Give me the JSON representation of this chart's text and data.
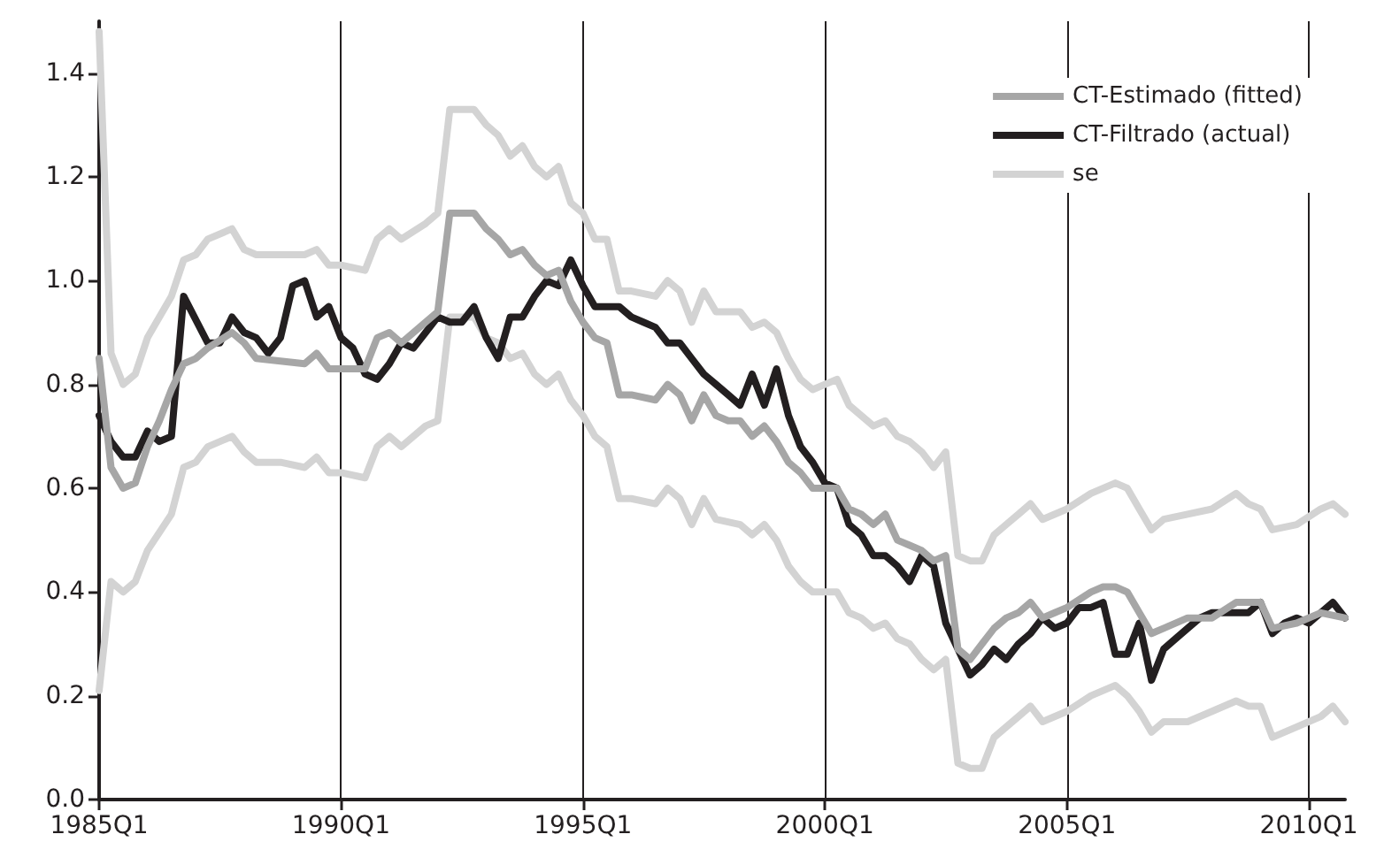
{
  "chart_data": {
    "type": "line",
    "xlim": [
      "1985-01",
      "2010-10"
    ],
    "xticks": [
      {
        "value": "1985-01",
        "label": "1985Q1"
      },
      {
        "value": "1990-01",
        "label": "1990Q1"
      },
      {
        "value": "1995-01",
        "label": "1995Q1"
      },
      {
        "value": "2000-01",
        "label": "2000Q1"
      },
      {
        "value": "2005-01",
        "label": "2005Q1"
      },
      {
        "value": "2010-01",
        "label": "2010Q1"
      }
    ],
    "ylim": [
      0,
      1.5
    ],
    "yticks": [
      {
        "value": 0,
        "label": "0.0"
      },
      {
        "value": 0.2,
        "label": "0.2"
      },
      {
        "value": 0.4,
        "label": "0.4"
      },
      {
        "value": 0.6,
        "label": "0.6"
      },
      {
        "value": 0.8,
        "label": "0.8"
      },
      {
        "value": 1,
        "label": "1.0"
      },
      {
        "value": 1.2,
        "label": "1.2"
      },
      {
        "value": 1.4,
        "label": "1.4"
      }
    ],
    "grid": "x",
    "legend": "top right",
    "marker": "none",
    "series": [
      {
        "name": "CT-Estimado (fitted)",
        "color": "#a6a6a6",
        "x": [
          "1985-01",
          "1985-04",
          "1985-07",
          "1985-10",
          "1986-01",
          "1986-04",
          "1986-07",
          "1986-10",
          "1987-01",
          "1987-04",
          "1987-10",
          "1988-01",
          "1988-04",
          "1989-04",
          "1989-07",
          "1989-10",
          "1990-01",
          "1990-07",
          "1990-10",
          "1991-01",
          "1991-04",
          "1991-10",
          "1992-01",
          "1992-04",
          "1992-10",
          "1993-01",
          "1993-04",
          "1993-07",
          "1993-10",
          "1994-01",
          "1994-04",
          "1994-07",
          "1994-10",
          "1995-01",
          "1995-04",
          "1995-07",
          "1995-10",
          "1996-01",
          "1996-07",
          "1996-10",
          "1997-01",
          "1997-04",
          "1997-07",
          "1997-10",
          "1998-01",
          "1998-04",
          "1998-07",
          "1998-10",
          "1999-01",
          "1999-04",
          "1999-07",
          "1999-10",
          "2000-01",
          "2000-04",
          "2000-07",
          "2000-10",
          "2001-01",
          "2001-04",
          "2001-07",
          "2001-10",
          "2002-01",
          "2002-04",
          "2002-07",
          "2002-10",
          "2003-01",
          "2003-04",
          "2003-07",
          "2003-10",
          "2004-01",
          "2004-04",
          "2004-07",
          "2004-10",
          "2005-01",
          "2005-07",
          "2005-10",
          "2006-01",
          "2006-04",
          "2006-07",
          "2006-10",
          "2007-01",
          "2007-07",
          "2008-01",
          "2008-07",
          "2008-10",
          "2009-01",
          "2009-04",
          "2009-10",
          "2010-04",
          "2010-10"
        ],
        "values": [
          0.85,
          0.64,
          0.6,
          0.61,
          0.68,
          0.73,
          0.79,
          0.84,
          0.85,
          0.87,
          0.9,
          0.88,
          0.85,
          0.84,
          0.86,
          0.83,
          0.83,
          0.83,
          0.89,
          0.9,
          0.88,
          0.92,
          0.94,
          1.13,
          1.13,
          1.1,
          1.08,
          1.05,
          1.06,
          1.03,
          1.01,
          1.02,
          0.96,
          0.92,
          0.89,
          0.88,
          0.78,
          0.78,
          0.77,
          0.8,
          0.78,
          0.73,
          0.78,
          0.74,
          0.73,
          0.73,
          0.7,
          0.72,
          0.69,
          0.65,
          0.63,
          0.6,
          0.6,
          0.6,
          0.56,
          0.55,
          0.53,
          0.55,
          0.5,
          0.49,
          0.48,
          0.46,
          0.47,
          0.29,
          0.27,
          0.3,
          0.33,
          0.35,
          0.36,
          0.38,
          0.35,
          0.36,
          0.37,
          0.4,
          0.41,
          0.41,
          0.4,
          0.36,
          0.32,
          0.33,
          0.35,
          0.35,
          0.38,
          0.38,
          0.38,
          0.33,
          0.34,
          0.36,
          0.35
        ]
      },
      {
        "name": "CT-Filtrado (actual)",
        "color": "#231f20",
        "x": [
          "1985-01",
          "1985-04",
          "1985-07",
          "1985-10",
          "1986-01",
          "1986-04",
          "1986-07",
          "1986-10",
          "1987-04",
          "1987-07",
          "1987-10",
          "1988-01",
          "1988-04",
          "1988-07",
          "1988-10",
          "1989-01",
          "1989-04",
          "1989-07",
          "1989-10",
          "1990-01",
          "1990-04",
          "1990-07",
          "1990-10",
          "1991-01",
          "1991-04",
          "1991-07",
          "1991-10",
          "1992-01",
          "1992-04",
          "1992-07",
          "1992-10",
          "1993-01",
          "1993-04",
          "1993-07",
          "1993-10",
          "1994-01",
          "1994-04",
          "1994-07",
          "1994-10",
          "1995-01",
          "1995-04",
          "1995-07",
          "1995-10",
          "1996-01",
          "1996-04",
          "1996-07",
          "1996-10",
          "1997-01",
          "1997-04",
          "1997-07",
          "1997-10",
          "1998-01",
          "1998-04",
          "1998-07",
          "1998-10",
          "1999-01",
          "1999-04",
          "1999-07",
          "1999-10",
          "2000-01",
          "2000-04",
          "2000-07",
          "2000-10",
          "2001-01",
          "2001-04",
          "2001-07",
          "2001-10",
          "2002-01",
          "2002-04",
          "2002-07",
          "2002-10",
          "2003-01",
          "2003-04",
          "2003-07",
          "2003-10",
          "2004-01",
          "2004-04",
          "2004-07",
          "2004-10",
          "2005-01",
          "2005-04",
          "2005-07",
          "2005-10",
          "2006-01",
          "2006-04",
          "2006-07",
          "2006-10",
          "2007-01",
          "2007-04",
          "2007-07",
          "2007-10",
          "2008-01",
          "2008-04",
          "2008-07",
          "2008-10",
          "2009-01",
          "2009-04",
          "2009-07",
          "2009-10",
          "2010-01",
          "2010-04",
          "2010-07",
          "2010-10"
        ],
        "values": [
          0.74,
          0.69,
          0.66,
          0.66,
          0.71,
          0.69,
          0.7,
          0.97,
          0.88,
          0.88,
          0.93,
          0.9,
          0.89,
          0.86,
          0.89,
          0.99,
          1.0,
          0.93,
          0.95,
          0.89,
          0.87,
          0.82,
          0.81,
          0.84,
          0.88,
          0.87,
          0.9,
          0.93,
          0.92,
          0.92,
          0.95,
          0.89,
          0.85,
          0.93,
          0.93,
          0.97,
          1.0,
          0.99,
          1.04,
          0.99,
          0.95,
          0.95,
          0.95,
          0.93,
          0.92,
          0.91,
          0.88,
          0.88,
          0.85,
          0.82,
          0.8,
          0.78,
          0.76,
          0.82,
          0.76,
          0.83,
          0.74,
          0.68,
          0.65,
          0.61,
          0.6,
          0.53,
          0.51,
          0.47,
          0.47,
          0.45,
          0.42,
          0.47,
          0.45,
          0.34,
          0.29,
          0.24,
          0.26,
          0.29,
          0.27,
          0.3,
          0.32,
          0.35,
          0.33,
          0.34,
          0.37,
          0.37,
          0.38,
          0.28,
          0.28,
          0.34,
          0.23,
          0.29,
          0.31,
          0.33,
          0.35,
          0.36,
          0.36,
          0.36,
          0.36,
          0.38,
          0.32,
          0.34,
          0.35,
          0.34,
          0.36,
          0.38,
          0.35
        ]
      },
      {
        "name": "se",
        "color": "#d3d3d3",
        "x": [
          "1985-01",
          "1985-04",
          "1985-07",
          "1985-10",
          "1986-01",
          "1986-07",
          "1986-10",
          "1987-01",
          "1987-04",
          "1987-10",
          "1988-01",
          "1988-04",
          "1988-10",
          "1989-04",
          "1989-07",
          "1989-10",
          "1990-01",
          "1990-07",
          "1990-10",
          "1991-01",
          "1991-04",
          "1991-10",
          "1992-01",
          "1992-04",
          "1992-10",
          "1993-01",
          "1993-04",
          "1993-07",
          "1993-10",
          "1994-01",
          "1994-04",
          "1994-07",
          "1994-10",
          "1995-01",
          "1995-04",
          "1995-07",
          "1995-10",
          "1996-01",
          "1996-07",
          "1996-10",
          "1997-01",
          "1997-04",
          "1997-07",
          "1997-10",
          "1998-04",
          "1998-07",
          "1998-10",
          "1999-01",
          "1999-04",
          "1999-07",
          "1999-10",
          "2000-01",
          "2000-04",
          "2000-07",
          "2000-10",
          "2001-01",
          "2001-04",
          "2001-07",
          "2001-10",
          "2002-01",
          "2002-04",
          "2002-07",
          "2002-10",
          "2003-01",
          "2003-04",
          "2003-07",
          "2003-10",
          "2004-01",
          "2004-04",
          "2004-07",
          "2005-01",
          "2005-07",
          "2006-01",
          "2006-04",
          "2006-07",
          "2006-10",
          "2007-01",
          "2007-07",
          "2008-01",
          "2008-07",
          "2008-10",
          "2009-01",
          "2009-04",
          "2009-10",
          "2010-04",
          "2010-07",
          "2010-10"
        ],
        "values": [
          1.48,
          0.86,
          0.8,
          0.82,
          0.89,
          0.97,
          1.04,
          1.05,
          1.08,
          1.1,
          1.06,
          1.05,
          1.05,
          1.05,
          1.06,
          1.03,
          1.03,
          1.02,
          1.08,
          1.1,
          1.08,
          1.11,
          1.13,
          1.33,
          1.33,
          1.3,
          1.28,
          1.24,
          1.26,
          1.22,
          1.2,
          1.22,
          1.15,
          1.13,
          1.08,
          1.08,
          0.98,
          0.98,
          0.97,
          1.0,
          0.98,
          0.92,
          0.98,
          0.94,
          0.94,
          0.91,
          0.92,
          0.9,
          0.85,
          0.81,
          0.79,
          0.8,
          0.81,
          0.76,
          0.74,
          0.72,
          0.73,
          0.7,
          0.69,
          0.67,
          0.64,
          0.67,
          0.47,
          0.46,
          0.46,
          0.51,
          0.53,
          0.55,
          0.57,
          0.54,
          0.56,
          0.59,
          0.61,
          0.6,
          0.56,
          0.52,
          0.54,
          0.55,
          0.56,
          0.59,
          0.57,
          0.56,
          0.52,
          0.53,
          0.56,
          0.57,
          0.55
        ]
      },
      {
        "color": "#d3d3d3",
        "x": [
          "1985-01",
          "1985-04",
          "1985-07",
          "1985-10",
          "1986-01",
          "1986-07",
          "1986-10",
          "1987-01",
          "1987-04",
          "1987-10",
          "1988-01",
          "1988-04",
          "1988-10",
          "1989-04",
          "1989-07",
          "1989-10",
          "1990-01",
          "1990-07",
          "1990-10",
          "1991-01",
          "1991-04",
          "1991-10",
          "1992-01",
          "1992-04",
          "1992-10",
          "1993-01",
          "1993-04",
          "1993-07",
          "1993-10",
          "1994-01",
          "1994-04",
          "1994-07",
          "1994-10",
          "1995-01",
          "1995-04",
          "1995-07",
          "1995-10",
          "1996-01",
          "1996-07",
          "1996-10",
          "1997-01",
          "1997-04",
          "1997-07",
          "1997-10",
          "1998-04",
          "1998-07",
          "1998-10",
          "1999-01",
          "1999-04",
          "1999-07",
          "1999-10",
          "2000-01",
          "2000-04",
          "2000-07",
          "2000-10",
          "2001-01",
          "2001-04",
          "2001-07",
          "2001-10",
          "2002-01",
          "2002-04",
          "2002-07",
          "2002-10",
          "2003-01",
          "2003-04",
          "2003-07",
          "2003-10",
          "2004-01",
          "2004-04",
          "2004-07",
          "2005-01",
          "2005-07",
          "2006-01",
          "2006-04",
          "2006-07",
          "2006-10",
          "2007-01",
          "2007-07",
          "2008-01",
          "2008-07",
          "2008-10",
          "2009-01",
          "2009-04",
          "2009-10",
          "2010-04",
          "2010-07",
          "2010-10"
        ],
        "values": [
          0.21,
          0.42,
          0.4,
          0.42,
          0.48,
          0.55,
          0.64,
          0.65,
          0.68,
          0.7,
          0.67,
          0.65,
          0.65,
          0.64,
          0.66,
          0.63,
          0.63,
          0.62,
          0.68,
          0.7,
          0.68,
          0.72,
          0.73,
          0.93,
          0.93,
          0.89,
          0.88,
          0.85,
          0.86,
          0.82,
          0.8,
          0.82,
          0.77,
          0.74,
          0.7,
          0.68,
          0.58,
          0.58,
          0.57,
          0.6,
          0.58,
          0.53,
          0.58,
          0.54,
          0.53,
          0.51,
          0.53,
          0.5,
          0.45,
          0.42,
          0.4,
          0.4,
          0.4,
          0.36,
          0.35,
          0.33,
          0.34,
          0.31,
          0.3,
          0.27,
          0.25,
          0.27,
          0.07,
          0.06,
          0.06,
          0.12,
          0.14,
          0.16,
          0.18,
          0.15,
          0.17,
          0.2,
          0.22,
          0.2,
          0.17,
          0.13,
          0.15,
          0.15,
          0.17,
          0.19,
          0.18,
          0.18,
          0.12,
          0.14,
          0.16,
          0.18,
          0.15
        ]
      }
    ]
  }
}
